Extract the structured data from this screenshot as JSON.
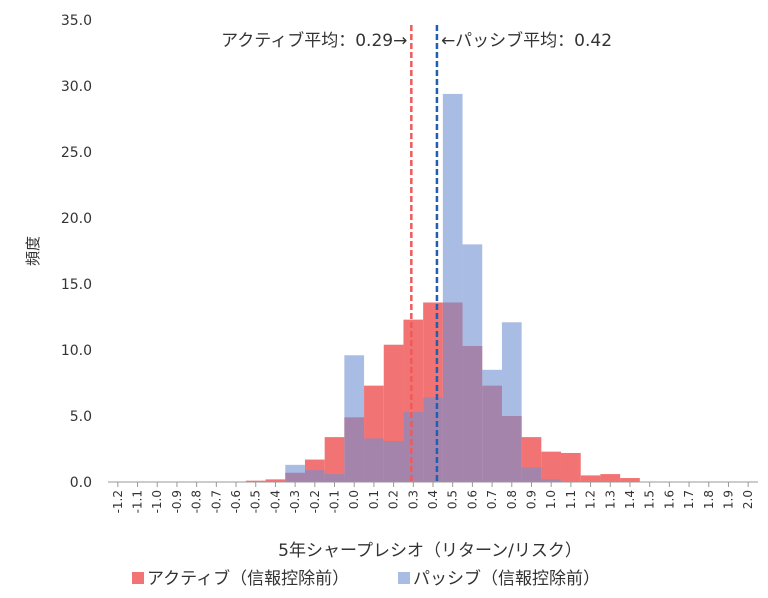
{
  "chart_data": {
    "type": "histogram",
    "y_label": "頻度",
    "x_label": "5年シャープレシオ（リターン/リスク）",
    "bins": [
      -1.25,
      -1.15,
      -1.05,
      -0.95,
      -0.85,
      -0.75,
      -0.65,
      -0.55,
      -0.45,
      -0.35,
      -0.25,
      -0.15,
      -0.05,
      0.05,
      0.15,
      0.25,
      0.35,
      0.45,
      0.55,
      0.65,
      0.75,
      0.85,
      0.95,
      1.05,
      1.15,
      1.25,
      1.35,
      1.45,
      1.55,
      1.65,
      1.75,
      1.85,
      1.95,
      2.05
    ],
    "series": [
      {
        "name": "アクティブ（信報控除前）",
        "color": "#f05a5a",
        "values": [
          0,
          0,
          0,
          0,
          0,
          0,
          0,
          0.1,
          0.2,
          0.7,
          1.7,
          3.4,
          4.9,
          7.3,
          10.4,
          12.3,
          13.6,
          13.6,
          10.3,
          7.3,
          5.0,
          3.4,
          2.3,
          2.2,
          0.5,
          0.6,
          0.3,
          0,
          0,
          0,
          0,
          0,
          0
        ]
      },
      {
        "name": "パッシブ（信報控除前）",
        "color": "#6f8fd0",
        "values": [
          0,
          0,
          0,
          0,
          0,
          0,
          0,
          0,
          0,
          1.3,
          0.9,
          0.6,
          9.6,
          3.3,
          3.1,
          5.3,
          6.4,
          29.4,
          18.0,
          8.5,
          12.1,
          1.1,
          0.2,
          0,
          0,
          0,
          0,
          0,
          0,
          0,
          0,
          0,
          0
        ]
      }
    ],
    "mean_lines": [
      {
        "value": 0.29,
        "label": "アクティブ平均：0.29→",
        "color": "#f05a5a"
      },
      {
        "value": 0.42,
        "label": "←パッシブ平均：0.42",
        "color": "#1f5fb0"
      }
    ],
    "xlim": [
      -1.25,
      2.05
    ],
    "ylim": [
      0,
      35
    ],
    "xticks": [
      -1.2,
      -1.1,
      {
        "value": -1,
        "label": "-1.0"
      },
      -0.9,
      -0.8,
      -0.7,
      -0.6,
      -0.5,
      -0.4,
      -0.3,
      -0.2,
      -0.1,
      {
        "value": 0,
        "label": "0.0"
      },
      0.1,
      0.2,
      0.3,
      0.4,
      0.5,
      0.6,
      0.7,
      0.8,
      0.9,
      {
        "value": 1,
        "label": "1.0"
      },
      1.1,
      1.2,
      1.3,
      1.4,
      1.5,
      1.6,
      1.7,
      1.8,
      1.9,
      {
        "value": 2,
        "label": "2.0"
      }
    ],
    "yticks": [
      {
        "value": 0,
        "label": "0.0"
      },
      {
        "value": 5,
        "label": "5.0"
      },
      {
        "value": 10,
        "label": "10.0"
      },
      {
        "value": 15,
        "label": "15.0"
      },
      {
        "value": 20,
        "label": "20.0"
      },
      {
        "value": 25,
        "label": "25.0"
      },
      {
        "value": 30,
        "label": "30.0"
      },
      {
        "value": 35,
        "label": "35.0"
      }
    ]
  }
}
